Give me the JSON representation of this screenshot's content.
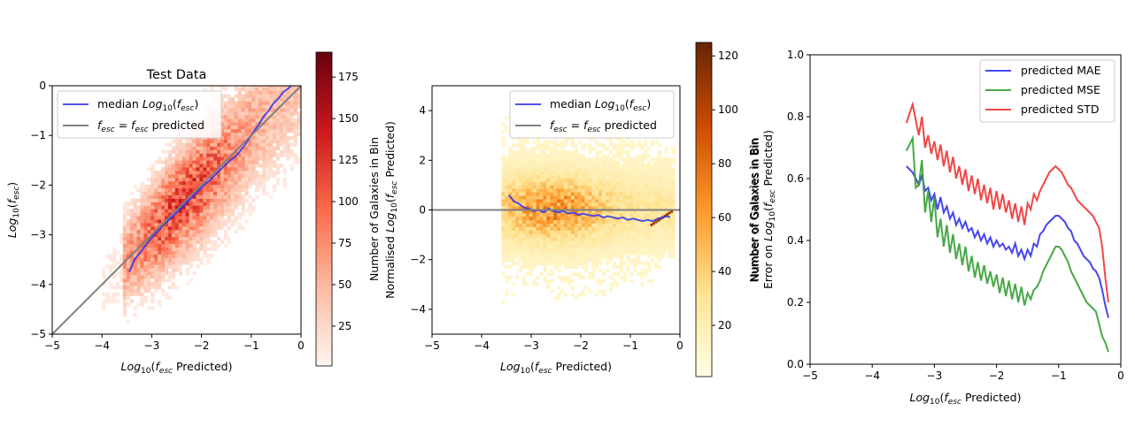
{
  "chart_data": [
    {
      "type": "heatmap",
      "title": "Test Data",
      "xlabel": "Log10(fesc Predicted)",
      "ylabel": "Log10(fesc)",
      "xlim": [
        -5,
        0
      ],
      "ylim": [
        -5,
        0
      ],
      "xticks": [
        "−5",
        "−4",
        "−3",
        "−2",
        "−1",
        "0"
      ],
      "yticks": [
        "−5",
        "−4",
        "−3",
        "−2",
        "−1",
        "0"
      ],
      "colormap": "Reds",
      "colorbar": {
        "label": "Number of Galaxies in Bin",
        "range": [
          1,
          190
        ],
        "ticks": [
          "25",
          "50",
          "75",
          "100",
          "125",
          "150",
          "175"
        ],
        "tick_values": [
          25,
          50,
          75,
          100,
          125,
          150,
          175
        ]
      },
      "legend": {
        "position": "top-left",
        "entries": [
          "median Log10(fesc)",
          "fesc = fesc predicted"
        ]
      },
      "series": [
        {
          "name": "median Log10(fesc)",
          "color": "#3333ee",
          "x": [
            -3.45,
            -3.35,
            -3.25,
            -3.15,
            -3.05,
            -2.95,
            -2.85,
            -2.75,
            -2.65,
            -2.55,
            -2.45,
            -2.35,
            -2.25,
            -2.15,
            -2.05,
            -1.95,
            -1.85,
            -1.75,
            -1.65,
            -1.55,
            -1.45,
            -1.35,
            -1.25,
            -1.15,
            -1.05,
            -0.95,
            -0.85,
            -0.75,
            -0.65,
            -0.55,
            -0.45,
            -0.35,
            -0.25,
            -0.2
          ],
          "y": [
            -3.75,
            -3.5,
            -3.38,
            -3.25,
            -3.12,
            -3.0,
            -2.9,
            -2.78,
            -2.7,
            -2.6,
            -2.5,
            -2.4,
            -2.3,
            -2.2,
            -2.1,
            -2.0,
            -1.92,
            -1.82,
            -1.72,
            -1.62,
            -1.52,
            -1.45,
            -1.35,
            -1.22,
            -1.08,
            -0.92,
            -0.78,
            -0.62,
            -0.5,
            -0.35,
            -0.25,
            -0.12,
            -0.05,
            0.0
          ]
        },
        {
          "name": "fesc = fesc predicted",
          "color": "#808080",
          "x": [
            -5,
            0
          ],
          "y": [
            -5,
            0
          ]
        }
      ]
    },
    {
      "type": "heatmap",
      "title": "",
      "xlabel": "Log10(fesc Predicted)",
      "ylabel": "Normalised Log10(fesc Predicted)",
      "xlim": [
        -5,
        0
      ],
      "ylim": [
        -5,
        5
      ],
      "xticks": [
        "−5",
        "−4",
        "−3",
        "−2",
        "−1",
        "0"
      ],
      "yticks": [
        "−4",
        "−2",
        "0",
        "2",
        "4"
      ],
      "colormap": "YlOrBr",
      "colorbar": {
        "label": "Number of Galaxies in Bin",
        "range": [
          1,
          125
        ],
        "ticks": [
          "20",
          "40",
          "60",
          "80",
          "100",
          "120"
        ],
        "tick_values": [
          20,
          40,
          60,
          80,
          100,
          120
        ]
      },
      "legend": {
        "position": "top-right",
        "entries": [
          "median Log10(fesc)",
          "fesc = fesc predicted"
        ]
      },
      "series": [
        {
          "name": "median Log10(fesc)",
          "color": "#3333ee",
          "x": [
            -3.45,
            -3.35,
            -3.25,
            -3.15,
            -3.05,
            -2.95,
            -2.85,
            -2.75,
            -2.65,
            -2.55,
            -2.45,
            -2.35,
            -2.25,
            -2.15,
            -2.05,
            -1.95,
            -1.85,
            -1.75,
            -1.65,
            -1.55,
            -1.45,
            -1.35,
            -1.25,
            -1.15,
            -1.05,
            -0.95,
            -0.85,
            -0.75,
            -0.65,
            -0.55,
            -0.45,
            -0.35,
            -0.25,
            -0.2
          ],
          "y": [
            0.6,
            0.35,
            0.25,
            0.1,
            0.05,
            -0.05,
            0.0,
            -0.1,
            0.05,
            -0.05,
            -0.1,
            -0.05,
            -0.15,
            -0.1,
            -0.2,
            -0.15,
            -0.2,
            -0.25,
            -0.2,
            -0.3,
            -0.25,
            -0.3,
            -0.35,
            -0.3,
            -0.4,
            -0.35,
            -0.4,
            -0.45,
            -0.4,
            -0.45,
            -0.35,
            -0.3,
            -0.25,
            -0.3
          ]
        },
        {
          "name": "fesc = fesc predicted",
          "color": "#808080",
          "x": [
            -5,
            0
          ],
          "y": [
            0,
            0
          ]
        }
      ]
    },
    {
      "type": "line",
      "title": "",
      "xlabel": "Log10(fesc Predicted)",
      "ylabel": "Number of Galaxies in Bin",
      "ylabel2": "Error on Log10(fesc Predicted)",
      "xlim": [
        -5,
        0
      ],
      "ylim": [
        0,
        1
      ],
      "xticks": [
        "−5",
        "−4",
        "−3",
        "−2",
        "−1",
        "0"
      ],
      "yticks": [
        "0.0",
        "0.2",
        "0.4",
        "0.6",
        "0.8",
        "1.0"
      ],
      "legend": {
        "position": "top-right",
        "entries": [
          "predicted MAE",
          "predicted MSE",
          "predicted STD"
        ]
      },
      "series": [
        {
          "name": "predicted MAE",
          "color": "#3333ee",
          "x": [
            -3.45,
            -3.35,
            -3.25,
            -3.2,
            -3.15,
            -3.1,
            -3.05,
            -3.0,
            -2.95,
            -2.9,
            -2.85,
            -2.8,
            -2.75,
            -2.7,
            -2.65,
            -2.6,
            -2.55,
            -2.5,
            -2.45,
            -2.4,
            -2.35,
            -2.3,
            -2.25,
            -2.2,
            -2.15,
            -2.1,
            -2.05,
            -2.0,
            -1.95,
            -1.9,
            -1.85,
            -1.8,
            -1.75,
            -1.7,
            -1.65,
            -1.6,
            -1.55,
            -1.5,
            -1.45,
            -1.4,
            -1.35,
            -1.3,
            -1.25,
            -1.2,
            -1.15,
            -1.1,
            -1.05,
            -1.0,
            -0.95,
            -0.9,
            -0.85,
            -0.8,
            -0.75,
            -0.7,
            -0.65,
            -0.6,
            -0.55,
            -0.5,
            -0.45,
            -0.4,
            -0.35,
            -0.3,
            -0.25,
            -0.2
          ],
          "y": [
            0.64,
            0.62,
            0.58,
            0.61,
            0.56,
            0.57,
            0.53,
            0.55,
            0.5,
            0.54,
            0.49,
            0.51,
            0.47,
            0.49,
            0.45,
            0.47,
            0.44,
            0.46,
            0.43,
            0.44,
            0.41,
            0.43,
            0.4,
            0.42,
            0.39,
            0.41,
            0.38,
            0.4,
            0.38,
            0.39,
            0.37,
            0.38,
            0.36,
            0.39,
            0.35,
            0.37,
            0.34,
            0.37,
            0.35,
            0.39,
            0.38,
            0.42,
            0.43,
            0.45,
            0.46,
            0.47,
            0.48,
            0.48,
            0.47,
            0.46,
            0.44,
            0.43,
            0.4,
            0.39,
            0.37,
            0.35,
            0.34,
            0.33,
            0.31,
            0.3,
            0.28,
            0.24,
            0.19,
            0.15
          ]
        },
        {
          "name": "predicted MSE",
          "color": "#33a033",
          "x": [
            -3.45,
            -3.35,
            -3.3,
            -3.25,
            -3.2,
            -3.15,
            -3.1,
            -3.05,
            -3.0,
            -2.95,
            -2.9,
            -2.85,
            -2.8,
            -2.75,
            -2.7,
            -2.65,
            -2.6,
            -2.55,
            -2.5,
            -2.45,
            -2.4,
            -2.35,
            -2.3,
            -2.25,
            -2.2,
            -2.15,
            -2.1,
            -2.05,
            -2.0,
            -1.95,
            -1.9,
            -1.85,
            -1.8,
            -1.75,
            -1.7,
            -1.65,
            -1.6,
            -1.55,
            -1.5,
            -1.45,
            -1.4,
            -1.35,
            -1.3,
            -1.25,
            -1.2,
            -1.15,
            -1.1,
            -1.05,
            -1.0,
            -0.95,
            -0.9,
            -0.85,
            -0.8,
            -0.75,
            -0.7,
            -0.65,
            -0.6,
            -0.55,
            -0.5,
            -0.45,
            -0.4,
            -0.35,
            -0.3,
            -0.25,
            -0.2
          ],
          "y": [
            0.69,
            0.73,
            0.57,
            0.58,
            0.66,
            0.49,
            0.56,
            0.46,
            0.54,
            0.41,
            0.47,
            0.38,
            0.45,
            0.36,
            0.42,
            0.34,
            0.39,
            0.32,
            0.38,
            0.3,
            0.35,
            0.28,
            0.33,
            0.27,
            0.32,
            0.26,
            0.3,
            0.25,
            0.29,
            0.23,
            0.28,
            0.22,
            0.27,
            0.21,
            0.26,
            0.2,
            0.25,
            0.19,
            0.23,
            0.21,
            0.24,
            0.25,
            0.27,
            0.3,
            0.32,
            0.34,
            0.36,
            0.38,
            0.38,
            0.37,
            0.35,
            0.33,
            0.3,
            0.28,
            0.26,
            0.24,
            0.22,
            0.2,
            0.19,
            0.18,
            0.17,
            0.13,
            0.09,
            0.07,
            0.04
          ]
        },
        {
          "name": "predicted STD",
          "color": "#ee3333",
          "x": [
            -3.45,
            -3.35,
            -3.25,
            -3.2,
            -3.15,
            -3.1,
            -3.05,
            -3.0,
            -2.95,
            -2.9,
            -2.85,
            -2.8,
            -2.75,
            -2.7,
            -2.65,
            -2.6,
            -2.55,
            -2.5,
            -2.45,
            -2.4,
            -2.35,
            -2.3,
            -2.25,
            -2.2,
            -2.15,
            -2.1,
            -2.05,
            -2.0,
            -1.95,
            -1.9,
            -1.85,
            -1.8,
            -1.75,
            -1.7,
            -1.65,
            -1.6,
            -1.55,
            -1.5,
            -1.45,
            -1.4,
            -1.35,
            -1.3,
            -1.25,
            -1.2,
            -1.15,
            -1.1,
            -1.05,
            -1.0,
            -0.95,
            -0.9,
            -0.85,
            -0.8,
            -0.75,
            -0.7,
            -0.65,
            -0.6,
            -0.55,
            -0.5,
            -0.45,
            -0.4,
            -0.35,
            -0.3,
            -0.25,
            -0.2
          ],
          "y": [
            0.78,
            0.84,
            0.74,
            0.8,
            0.7,
            0.74,
            0.68,
            0.72,
            0.66,
            0.71,
            0.64,
            0.69,
            0.62,
            0.67,
            0.6,
            0.64,
            0.58,
            0.63,
            0.56,
            0.61,
            0.55,
            0.6,
            0.53,
            0.58,
            0.52,
            0.57,
            0.5,
            0.56,
            0.5,
            0.55,
            0.49,
            0.53,
            0.47,
            0.52,
            0.46,
            0.51,
            0.45,
            0.52,
            0.5,
            0.55,
            0.53,
            0.56,
            0.58,
            0.6,
            0.62,
            0.63,
            0.64,
            0.63,
            0.62,
            0.6,
            0.58,
            0.57,
            0.55,
            0.53,
            0.52,
            0.51,
            0.5,
            0.49,
            0.48,
            0.46,
            0.44,
            0.38,
            0.28,
            0.2
          ]
        }
      ]
    }
  ]
}
